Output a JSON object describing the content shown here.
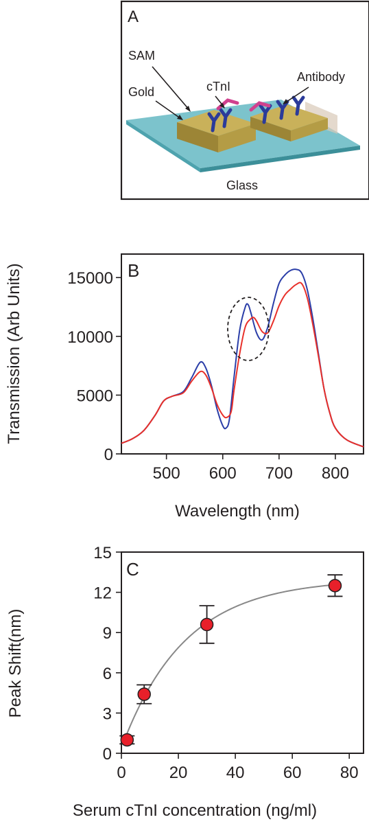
{
  "panel_a": {
    "label": "A",
    "labels": {
      "sam": "SAM",
      "ctni": "cTnI",
      "antibody": "Antibody",
      "gold": "Gold",
      "glass": "Glass"
    },
    "colors": {
      "glass_top": "#7cc3cc",
      "glass_side": "#4ea3ae",
      "gold_top": "#b8a24f",
      "gold_side": "#8e7a32",
      "antibody": "#2b3b9a",
      "ctni": "#d0418e"
    }
  },
  "chart_data": [
    {
      "panel": "B",
      "type": "line",
      "xlabel": "Wavelength (nm)",
      "ylabel": "Transmission (Arb Units)",
      "xlim": [
        420,
        850
      ],
      "ylim": [
        0,
        17000
      ],
      "xticks": [
        500,
        600,
        700,
        800
      ],
      "yticks": [
        0,
        5000,
        10000,
        15000
      ],
      "annotation": "dashed ellipse around the ~645 nm peak",
      "series": [
        {
          "color": "#2b3ea8",
          "x": [
            420,
            440,
            460,
            480,
            495,
            510,
            530,
            545,
            560,
            570,
            580,
            590,
            600,
            606,
            612,
            620,
            630,
            640,
            645,
            650,
            660,
            670,
            680,
            690,
            700,
            710,
            720,
            730,
            740,
            750,
            760,
            770,
            780,
            790,
            800,
            820,
            850
          ],
          "y": [
            900,
            1300,
            2000,
            3300,
            4500,
            4900,
            5300,
            6500,
            7800,
            7300,
            5800,
            3800,
            2400,
            2200,
            3000,
            6500,
            10500,
            12500,
            12700,
            12000,
            10300,
            9700,
            10800,
            12800,
            14500,
            15200,
            15600,
            15700,
            15400,
            14000,
            11500,
            8500,
            5500,
            3500,
            2200,
            1200,
            600
          ]
        },
        {
          "color": "#e8302a",
          "x": [
            420,
            440,
            460,
            480,
            495,
            510,
            530,
            545,
            560,
            570,
            580,
            590,
            600,
            607,
            615,
            620,
            630,
            640,
            650,
            655,
            660,
            670,
            680,
            690,
            700,
            710,
            720,
            730,
            740,
            750,
            760,
            770,
            780,
            790,
            800,
            820,
            850
          ],
          "y": [
            900,
            1300,
            2000,
            3300,
            4500,
            4900,
            5200,
            6200,
            7000,
            6700,
            5600,
            4200,
            3300,
            3100,
            3600,
            5400,
            8500,
            10800,
            11500,
            11600,
            11300,
            10400,
            10300,
            11300,
            12600,
            13500,
            14000,
            14400,
            14500,
            13300,
            11000,
            8300,
            5500,
            3500,
            2200,
            1200,
            600
          ]
        }
      ]
    },
    {
      "panel": "C",
      "type": "scatter",
      "xlabel": "Serum cTnI concentration (ng/ml)",
      "ylabel": "Peak Shift(nm)",
      "xlim": [
        0,
        85
      ],
      "ylim": [
        0,
        15
      ],
      "xticks": [
        0,
        20,
        40,
        60,
        80
      ],
      "yticks": [
        0,
        3,
        6,
        9,
        12,
        15
      ],
      "points": [
        {
          "x": 2,
          "y": 1.0,
          "err": 0.3
        },
        {
          "x": 8,
          "y": 4.4,
          "err": 0.7
        },
        {
          "x": 30,
          "y": 9.6,
          "err": 1.4
        },
        {
          "x": 75,
          "y": 12.5,
          "err": 0.8
        }
      ],
      "fit": {
        "color": "#888888",
        "ymax": 13.0,
        "k": 0.045,
        "x0": 0.5
      },
      "point_color": "#e8202a"
    }
  ]
}
